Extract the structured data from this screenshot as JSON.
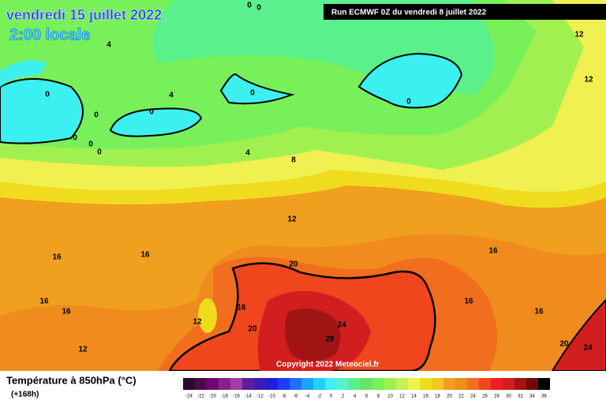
{
  "header": {
    "date": "vendredi 15 juillet 2022",
    "time": "2:00 locale",
    "run": "Run ECMWF 0Z du vendredi 8 juillet 2022",
    "copyright": "Copyright 2022 Meteociel.fr"
  },
  "contour_labels": [
    4,
    0,
    0,
    0,
    0,
    0,
    0,
    4,
    0,
    0,
    0,
    0,
    4,
    8,
    12,
    12,
    12,
    16,
    16,
    16,
    20,
    16,
    16,
    16,
    12,
    20,
    24,
    16,
    16,
    28,
    12,
    20,
    24
  ],
  "legend": {
    "title": "Température à 850hPa (°C)",
    "subtitle": "(+168h)",
    "steps": [
      -24,
      -22,
      -20,
      -18,
      -16,
      -14,
      -12,
      -10,
      -8,
      -6,
      -4,
      -2,
      0,
      2,
      4,
      6,
      8,
      10,
      12,
      14,
      16,
      18,
      20,
      22,
      24,
      26,
      28,
      30,
      32,
      34,
      36
    ],
    "colors": [
      "#2d0a2d",
      "#4b0a4b",
      "#6e0a6e",
      "#8c1e8c",
      "#a040a0",
      "#5a1ea0",
      "#3c1eb4",
      "#1e1edc",
      "#1e3cff",
      "#1e6eff",
      "#1ea0ff",
      "#1ed2ff",
      "#3cf0f0",
      "#5af0c8",
      "#5af08c",
      "#64e664",
      "#78f05a",
      "#a0f050",
      "#c8f050",
      "#f0f050",
      "#f0dc1e",
      "#f0c81e",
      "#f0a01e",
      "#f08c1e",
      "#f06e1e",
      "#f0461e",
      "#f01e1e",
      "#d21e1e",
      "#a01414",
      "#6e0a0a",
      "#000000"
    ]
  }
}
